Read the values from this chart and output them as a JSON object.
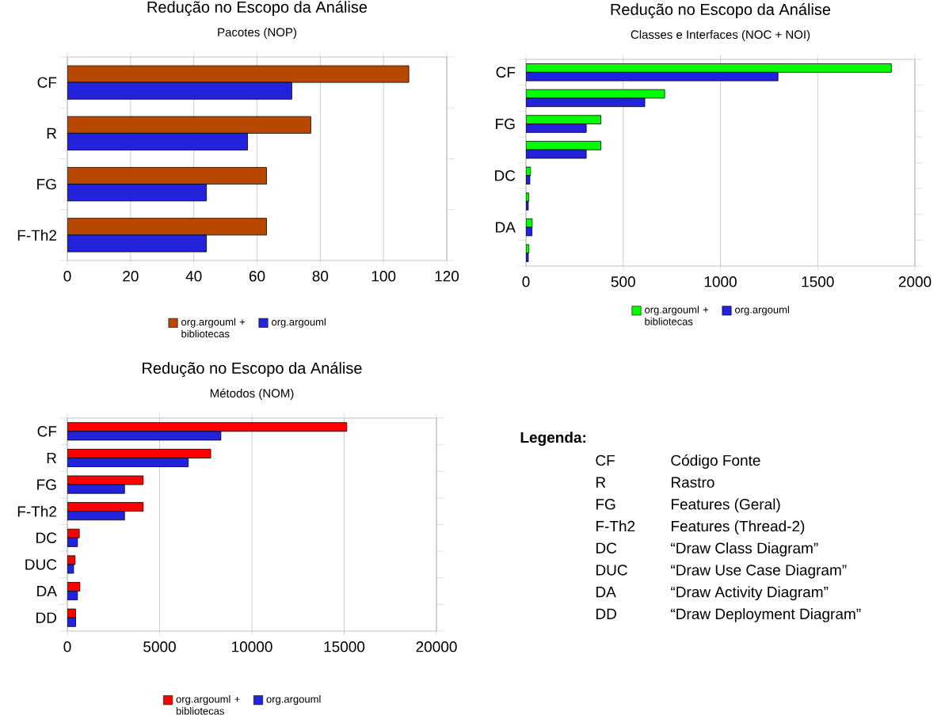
{
  "chart_data": [
    {
      "type": "bar",
      "title": "Redução no Escopo da Análise",
      "subtitle": "Pacotes (NOP)",
      "orientation": "horizontal",
      "categories": [
        "CF",
        "R",
        "FG",
        "F-Th2"
      ],
      "series": [
        {
          "name": "org.argouml + bibliotecas",
          "color": "#b84700",
          "values": [
            108,
            77,
            63,
            63
          ]
        },
        {
          "name": "org.argouml",
          "color": "#2323dc",
          "values": [
            71,
            57,
            44,
            44
          ]
        }
      ],
      "xlim": [
        0,
        120
      ],
      "xticks": [
        0,
        20,
        40,
        60,
        80,
        100,
        120
      ],
      "grid": "x",
      "legend": "bottom"
    },
    {
      "type": "bar",
      "title": "Redução no Escopo da Análise",
      "subtitle": "Classes e Interfaces (NOC + NOI)",
      "orientation": "horizontal",
      "categories": [
        "CF",
        null,
        "FG",
        null,
        "DC",
        null,
        "DA",
        null
      ],
      "series": [
        {
          "name": "org.argouml + bibliotecas",
          "color": "#00ff00",
          "values": [
            1879,
            713,
            385,
            385,
            23,
            14,
            32,
            15
          ]
        },
        {
          "name": "org.argouml",
          "color": "#2323dc",
          "values": [
            1296,
            611,
            310,
            310,
            20,
            12,
            31,
            12
          ]
        }
      ],
      "xlim": [
        0,
        2000
      ],
      "xticks": [
        0,
        500,
        1000,
        1500,
        2000
      ],
      "grid": "x",
      "legend": "bottom"
    },
    {
      "type": "bar",
      "title": "Redução no Escopo da Análise",
      "subtitle": "Métodos (NOM)",
      "orientation": "horizontal",
      "categories": [
        "CF",
        "R",
        "FG",
        "F-Th2",
        "DC",
        "DUC",
        "DA",
        "DD"
      ],
      "series": [
        {
          "name": "org.argouml + bibliotecas",
          "color": "#ff0000",
          "values": [
            15140,
            7770,
            4110,
            4110,
            650,
            420,
            680,
            450
          ]
        },
        {
          "name": "org.argouml",
          "color": "#2323dc",
          "values": [
            8320,
            6550,
            3100,
            3100,
            550,
            340,
            550,
            450
          ]
        }
      ],
      "xlim": [
        0,
        20000
      ],
      "xticks": [
        0,
        5000,
        10000,
        15000,
        20000
      ],
      "grid": "x",
      "legend": "bottom"
    },
    {
      "type": "other",
      "title": "Legenda:",
      "annotations": [
        "CF",
        "Código Fonte",
        "R",
        "Rastro",
        "FG",
        "Features (Geral)",
        "F-Th2",
        "Features (Thread-2)",
        "DC",
        "“Draw Class Diagram”",
        "DUC",
        "“Draw Use Case Diagram”",
        "DA",
        "“Draw Activity Diagram”",
        "DD",
        "“Draw Deployment Diagram”"
      ]
    }
  ]
}
